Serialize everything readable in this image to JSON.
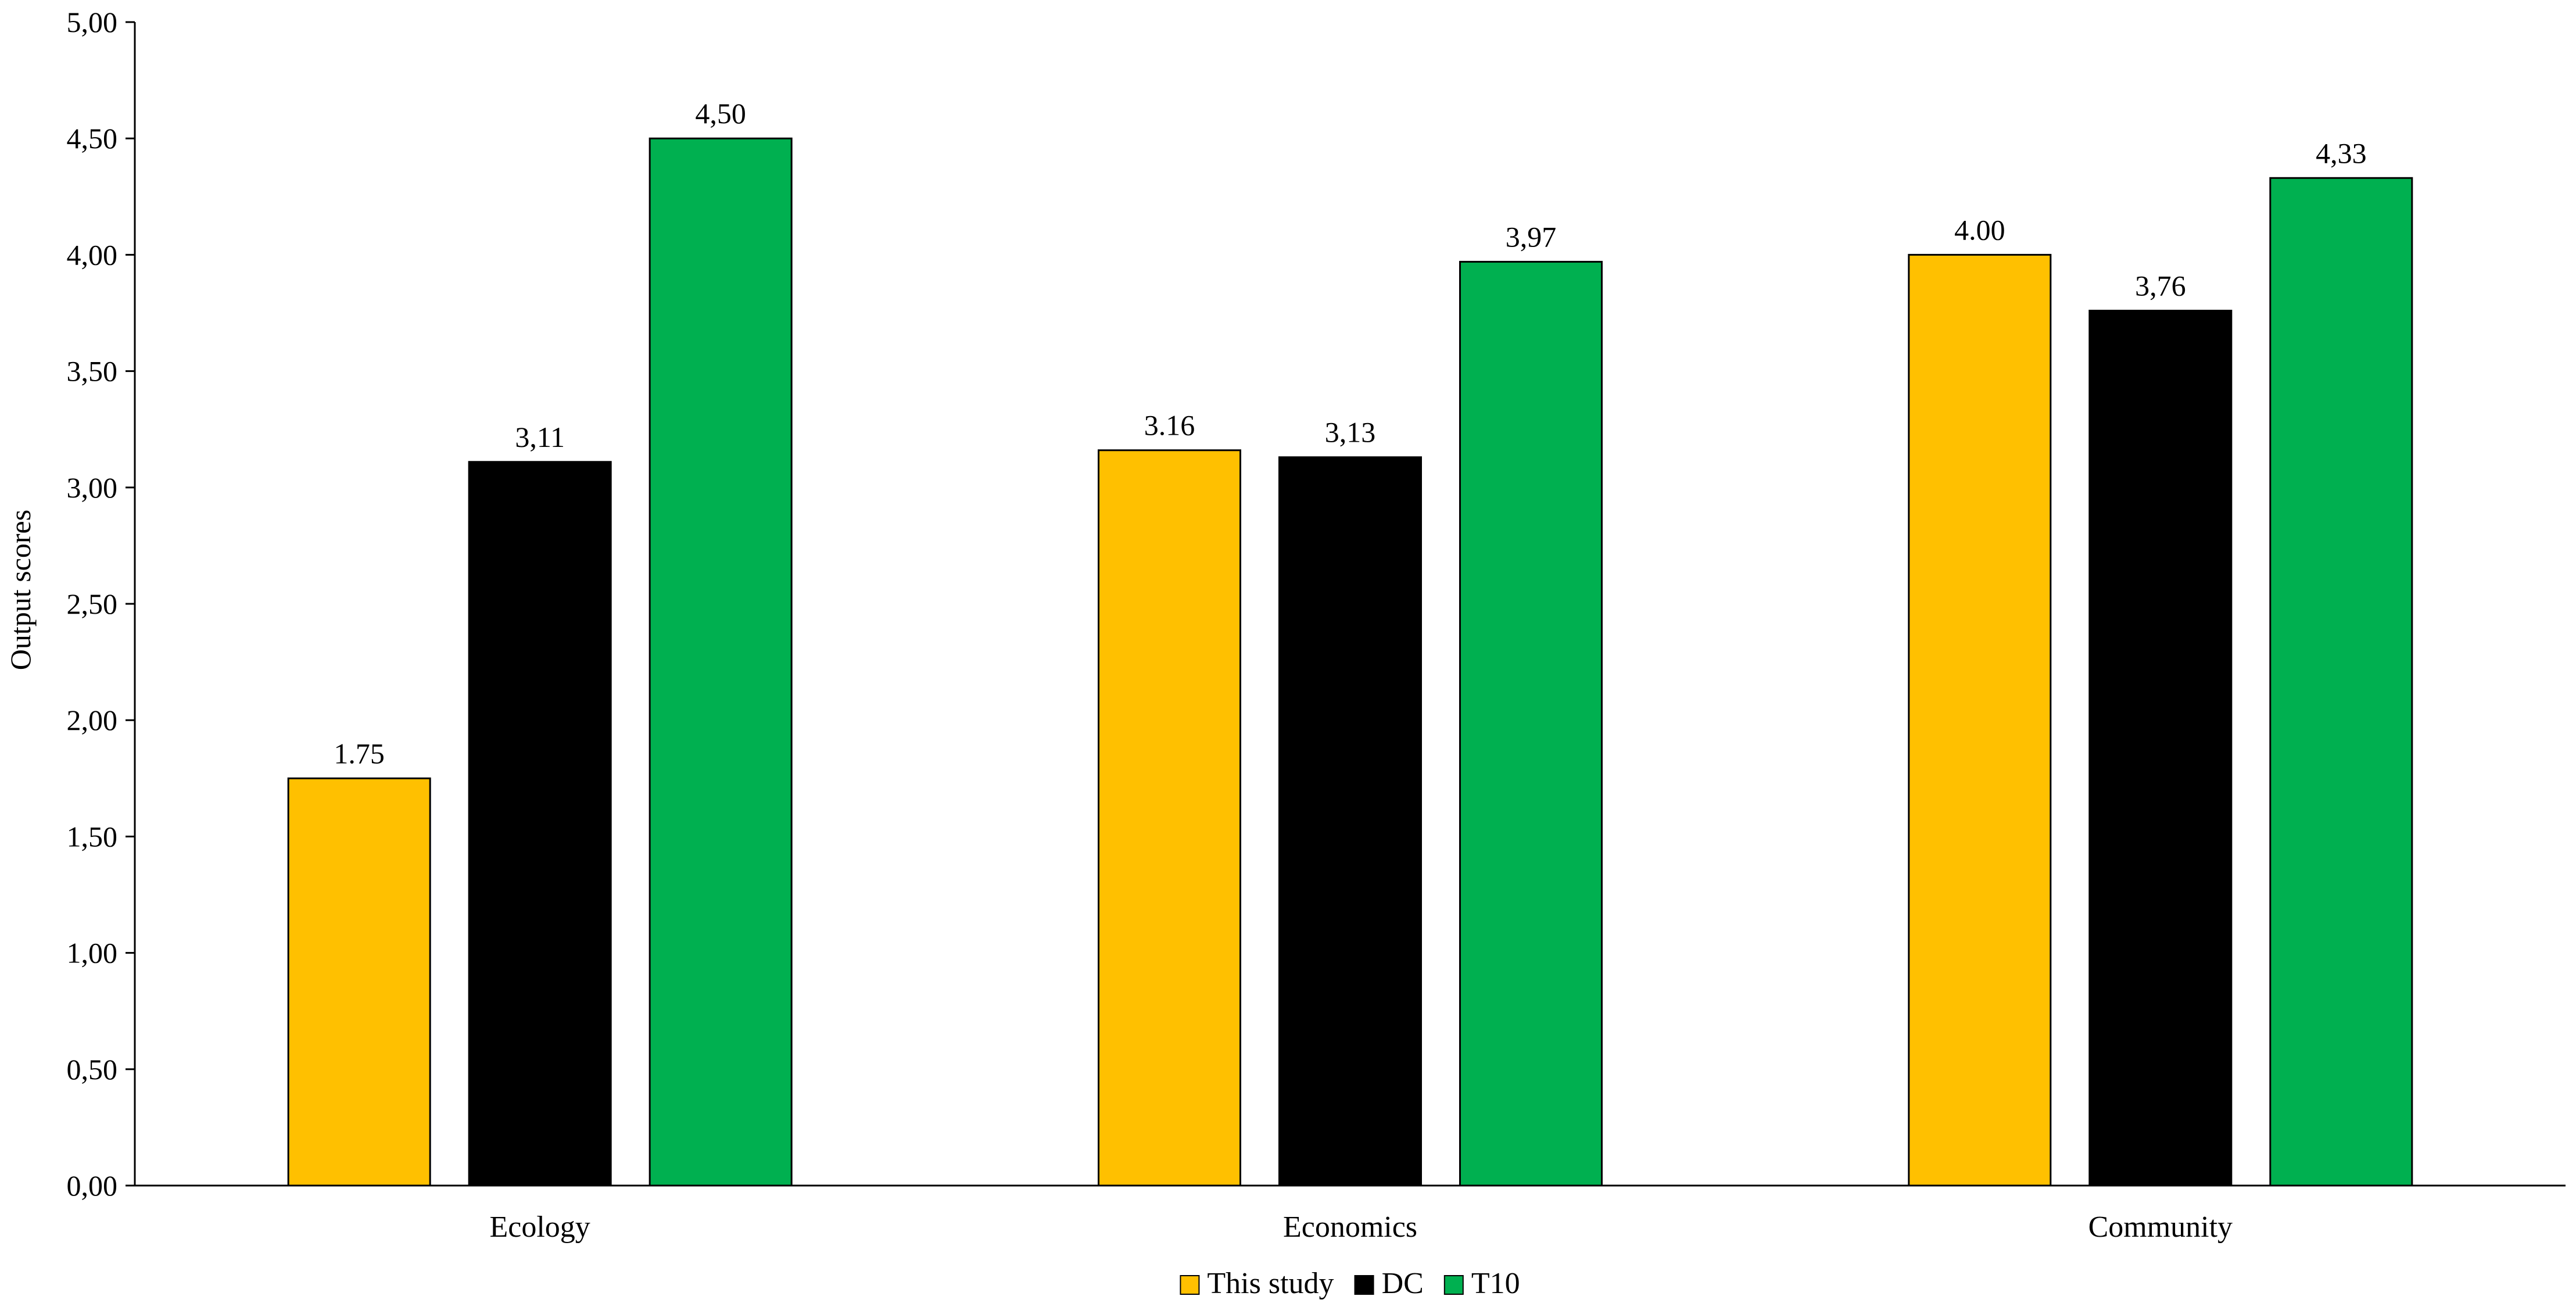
{
  "chart_data": {
    "type": "bar",
    "title": "",
    "xlabel": "",
    "ylabel": "Output scores",
    "ylim": [
      0,
      5
    ],
    "yticks": [
      "0,00",
      "0,50",
      "1,00",
      "1,50",
      "2,00",
      "2,50",
      "3,00",
      "3,50",
      "4,00",
      "4,50",
      "5,00"
    ],
    "grid": false,
    "legend_position": "bottom-center",
    "categories": [
      "Ecology",
      "Economics",
      "Community"
    ],
    "series": [
      {
        "name": "This study",
        "color": "#FFC000",
        "values": [
          1.75,
          3.16,
          4.0
        ],
        "labels": [
          "1.75",
          "3.16",
          "4.00"
        ]
      },
      {
        "name": "DC",
        "color": "#000000",
        "values": [
          3.11,
          3.13,
          3.76
        ],
        "labels": [
          "3,11",
          "3,13",
          "3,76"
        ]
      },
      {
        "name": "T10",
        "color": "#00B050",
        "values": [
          4.5,
          3.97,
          4.33
        ],
        "labels": [
          "4,50",
          "3,97",
          "4,33"
        ]
      }
    ]
  }
}
